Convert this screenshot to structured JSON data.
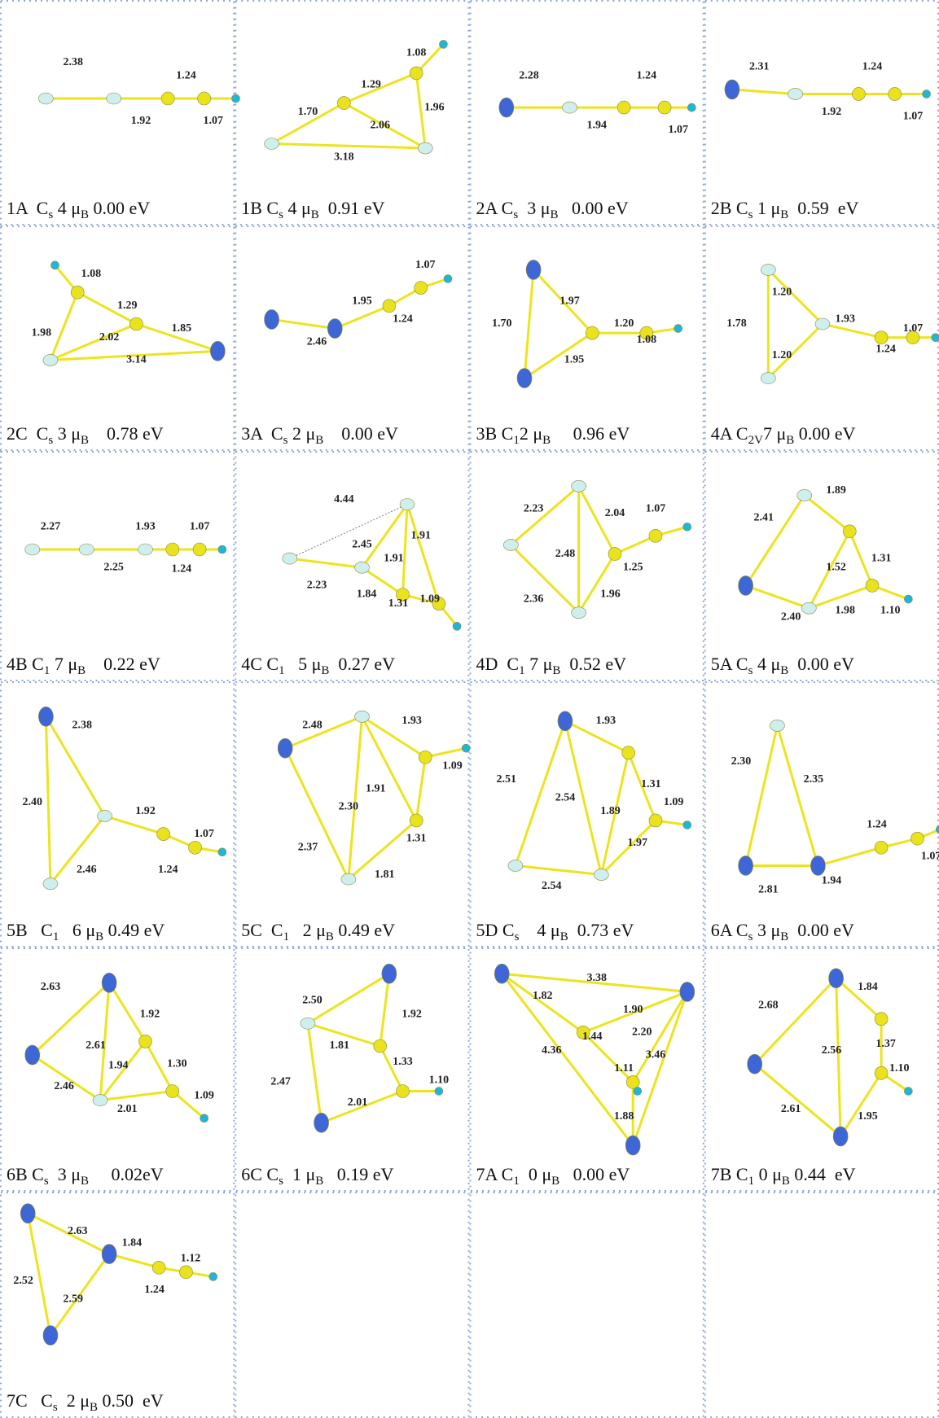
{
  "cells": [
    {
      "caption": [
        "1A  C",
        "s",
        " 4 μ",
        "B",
        " 0.00 eV"
      ],
      "bonds": [
        "2.38",
        "1.24",
        "1.92",
        "1.07"
      ]
    },
    {
      "caption": [
        "1B C",
        "s",
        " 4 μ",
        "B",
        "  0.91 eV"
      ],
      "bonds": [
        "1.08",
        "1.29",
        "1.70",
        "2.06",
        "1.96",
        "3.18"
      ]
    },
    {
      "caption": [
        "2A C",
        "s",
        "  3 μ",
        "B",
        "   0.00 eV"
      ],
      "bonds": [
        "2.28",
        "1.24",
        "1.94",
        "1.07"
      ]
    },
    {
      "caption": [
        "2B C",
        "s",
        " 1 μ",
        "B",
        "  0.59  eV"
      ],
      "bonds": [
        "2.31",
        "1.24",
        "1.92",
        "1.07"
      ]
    },
    {
      "caption": [
        "2C  C",
        "s",
        " 3 μ",
        "B",
        "    0.78 eV"
      ],
      "bonds": [
        "1.08",
        "1.29",
        "1.98",
        "2.02",
        "1.85",
        "3.14"
      ]
    },
    {
      "caption": [
        "3A  C",
        "s",
        " 2 μ",
        "B",
        "    0.00 eV"
      ],
      "bonds": [
        "1.07",
        "1.95",
        "1.24",
        "2.46"
      ]
    },
    {
      "caption": [
        "3B C",
        "1",
        "2 μ",
        "B",
        "     0.96 eV"
      ],
      "bonds": [
        "1.97",
        "1.70",
        "1.20",
        "1.08",
        "1.95"
      ]
    },
    {
      "caption": [
        "4A C",
        "2V",
        "7 μ",
        "B",
        " 0.00 eV"
      ],
      "bonds": [
        "1.20",
        "1.78",
        "1.20",
        "1.93",
        "1.24",
        "1.07"
      ]
    },
    {
      "caption": [
        "4B C",
        "1",
        " 7 μ",
        "B",
        "    0.22 eV"
      ],
      "bonds": [
        "2.27",
        "2.25",
        "1.93",
        "1.24",
        "1.07"
      ]
    },
    {
      "caption": [
        "4C C",
        "1",
        "   5 μ",
        "B",
        "  0.27 eV"
      ],
      "bonds": [
        "4.44",
        "2.45",
        "1.91",
        "1.91",
        "2.23",
        "1.84",
        "1.31",
        "1.09"
      ]
    },
    {
      "caption": [
        "4D  C",
        "1",
        " 7 μ",
        "B",
        "  0.52 eV"
      ],
      "bonds": [
        "2.23",
        "2.04",
        "1.07",
        "2.48",
        "1.25",
        "2.36",
        "1.96"
      ]
    },
    {
      "caption": [
        "5A C",
        "s",
        " 4 μ",
        "B",
        "  0.00 eV"
      ],
      "bonds": [
        "1.89",
        "2.41",
        "1.31",
        "1.52",
        "2.40",
        "1.98",
        "1.10"
      ]
    },
    {
      "caption": [
        "5B   C",
        "1",
        "   6 μ",
        "B",
        " 0.49 eV"
      ],
      "bonds": [
        "2.38",
        "2.40",
        "1.92",
        "1.07",
        "2.46",
        "1.24"
      ]
    },
    {
      "caption": [
        "5C  C",
        "1",
        "   2 μ",
        "B",
        " 0.49 eV"
      ],
      "bonds": [
        "2.48",
        "1.93",
        "1.09",
        "2.37",
        "2.30",
        "1.91",
        "1.31",
        "1.81"
      ]
    },
    {
      "caption": [
        "5D C",
        "s",
        "    4 μ",
        "B",
        "  0.73 eV"
      ],
      "bonds": [
        "1.93",
        "2.51",
        "1.31",
        "2.54",
        "1.89",
        "1.09",
        "1.97",
        "2.54"
      ]
    },
    {
      "caption": [
        "6A C",
        "s",
        " 3 μ",
        "B",
        "  0.00 eV"
      ],
      "bonds": [
        "2.30",
        "2.35",
        "1.24",
        "1.07",
        "2.81",
        "1.94"
      ]
    },
    {
      "caption": [
        "6B C",
        "s",
        "  3 μ",
        "B",
        "     0.02eV"
      ],
      "bonds": [
        "2.63",
        "1.92",
        "2.61",
        "1.94",
        "1.30",
        "2.46",
        "1.09",
        "2.01"
      ]
    },
    {
      "caption": [
        "6C C",
        "s",
        "  1 μ",
        "B",
        "   0.19 eV"
      ],
      "bonds": [
        "2.50",
        "1.92",
        "1.81",
        "1.33",
        "2.47",
        "1.10",
        "2.01"
      ]
    },
    {
      "caption": [
        "7A C",
        "1",
        "  0 μ",
        "B",
        "   0.00 eV"
      ],
      "bonds": [
        "3.38",
        "1.82",
        "1.90",
        "1.44",
        "2.20",
        "3.46",
        "4.36",
        "1.11",
        "1.88"
      ]
    },
    {
      "caption": [
        "7B C",
        "1",
        " 0 μ",
        "B",
        " 0.44  eV"
      ],
      "bonds": [
        "1.84",
        "2.68",
        "1.37",
        "2.56",
        "1.10",
        "2.61",
        "1.95"
      ]
    },
    {
      "caption": [
        "7C   C",
        "s",
        "  2 μ",
        "B",
        " 0.50  eV"
      ],
      "bonds": [
        "2.63",
        "1.84",
        "2.52",
        "1.24",
        "1.12",
        "2.59"
      ]
    }
  ]
}
